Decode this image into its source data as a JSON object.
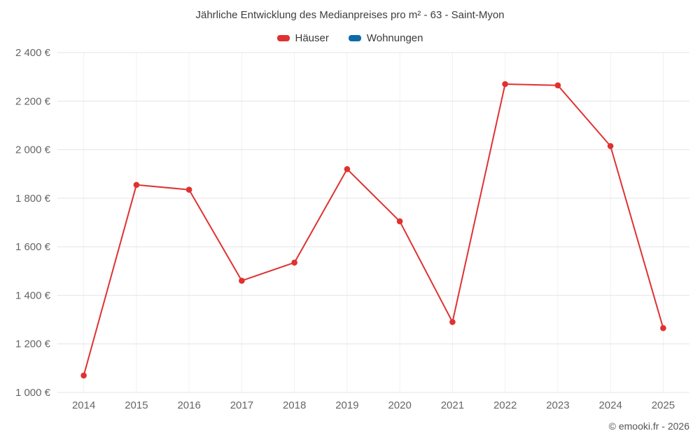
{
  "chart_data": {
    "type": "line",
    "title": "Jährliche Entwicklung des Medianpreises pro m² - 63 - Saint-Myon",
    "categories": [
      "2014",
      "2015",
      "2016",
      "2017",
      "2018",
      "2019",
      "2020",
      "2021",
      "2022",
      "2023",
      "2024",
      "2025"
    ],
    "series": [
      {
        "name": "Häuser",
        "color": "#e03131",
        "values": [
          1070,
          1855,
          1835,
          1460,
          1535,
          1920,
          1705,
          1290,
          2270,
          2265,
          2015,
          1265
        ]
      },
      {
        "name": "Wohnungen",
        "color": "#0e6ba8",
        "values": []
      }
    ],
    "xlabel": "",
    "ylabel": "",
    "ylim": [
      1000,
      2400
    ],
    "ytick_step": 200,
    "ytick_labels": [
      "1 000 €",
      "1 200 €",
      "1 400 €",
      "1 600 €",
      "1 800 €",
      "2 000 €",
      "2 200 €",
      "2 400 €"
    ],
    "grid": true,
    "legend_position": "top"
  },
  "footer": {
    "attribution": "© emooki.fr - 2026"
  }
}
